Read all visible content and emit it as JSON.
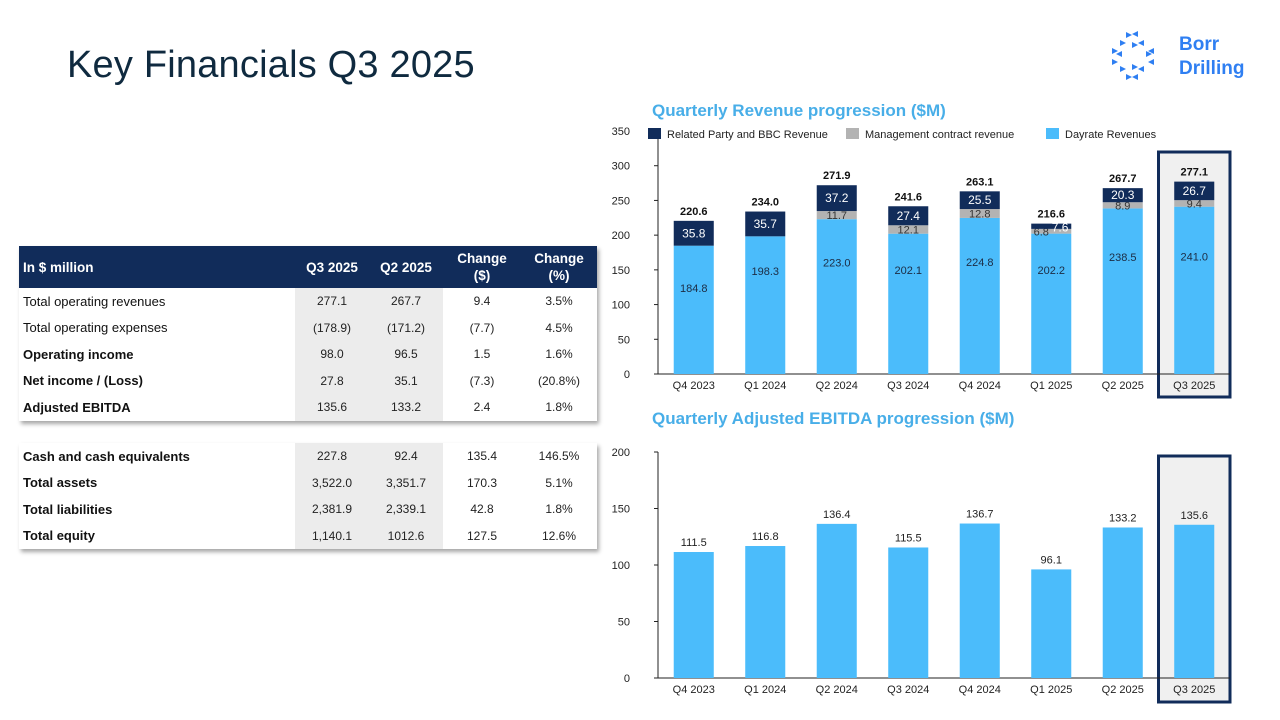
{
  "page": {
    "title": "Key Financials Q3 2025",
    "logo": {
      "line1": "Borr",
      "line2": "Drilling",
      "icon": "borr-drilling-logo-icon",
      "color": "#2f7ff2"
    }
  },
  "table_income": {
    "headers": [
      "In $ million",
      "Q3 2025",
      "Q2 2025",
      "Change ($)",
      "Change (%)"
    ],
    "header_lines": [
      [
        "In $ million"
      ],
      [
        "Q3 2025"
      ],
      [
        "Q2 2025"
      ],
      [
        "Change",
        "($)"
      ],
      [
        "Change",
        "(%)"
      ]
    ],
    "rows": [
      {
        "label": "Total operating revenues",
        "bold": false,
        "values": [
          "277.1",
          "267.7",
          "9.4",
          "3.5%"
        ]
      },
      {
        "label": "Total operating expenses",
        "bold": false,
        "values": [
          "(178.9)",
          "(171.2)",
          "(7.7)",
          "4.5%"
        ]
      },
      {
        "label": "Operating income",
        "bold": true,
        "values": [
          "98.0",
          "96.5",
          "1.5",
          "1.6%"
        ]
      },
      {
        "label": "Net income / (Loss)",
        "bold": true,
        "values": [
          "27.8",
          "35.1",
          "(7.3)",
          "(20.8%)"
        ]
      },
      {
        "label": "Adjusted EBITDA",
        "bold": true,
        "values": [
          "135.6",
          "133.2",
          "2.4",
          "1.8%"
        ]
      }
    ]
  },
  "table_balance": {
    "rows": [
      {
        "label": "Cash and cash equivalents",
        "bold": true,
        "values": [
          "227.8",
          "92.4",
          "135.4",
          "146.5%"
        ]
      },
      {
        "label": "Total assets",
        "bold": true,
        "values": [
          "3,522.0",
          "3,351.7",
          "170.3",
          "5.1%"
        ]
      },
      {
        "label": "Total liabilities",
        "bold": true,
        "values": [
          "2,381.9",
          "2,339.1",
          "42.8",
          "1.8%"
        ]
      },
      {
        "label": "Total equity",
        "bold": true,
        "values": [
          "1,140.1",
          "1012.6",
          "127.5",
          "12.6%"
        ]
      }
    ]
  },
  "chart_data": [
    {
      "type": "bar",
      "stacked": true,
      "title": "Quarterly Revenue progression ($M)",
      "categories": [
        "Q4 2023",
        "Q1 2024",
        "Q2 2024",
        "Q3 2024",
        "Q4 2024",
        "Q1 2025",
        "Q2 2025",
        "Q3 2025"
      ],
      "series": [
        {
          "name": "Dayrate Revenues",
          "color": "#4bbcfb",
          "values": [
            184.8,
            198.3,
            223.0,
            202.1,
            224.8,
            202.2,
            238.5,
            241.0
          ]
        },
        {
          "name": "Management contract revenue",
          "color": "#b3b3b3",
          "values": [
            0,
            0,
            11.7,
            12.1,
            12.8,
            6.8,
            8.9,
            9.4
          ]
        },
        {
          "name": "Related Party and BBC Revenue",
          "color": "#112c5a",
          "values": [
            35.8,
            35.7,
            37.2,
            27.4,
            25.5,
            7.6,
            20.3,
            26.7
          ]
        }
      ],
      "legend_order": [
        "Related Party and BBC Revenue",
        "Management contract revenue",
        "Dayrate Revenues"
      ],
      "legend_position": "top",
      "totals": [
        220.6,
        234.0,
        271.9,
        241.6,
        263.1,
        216.6,
        267.7,
        277.1
      ],
      "ylim": [
        0,
        350
      ],
      "yticks": [
        0,
        50,
        100,
        150,
        200,
        250,
        300,
        350
      ],
      "highlight_category": "Q3 2025",
      "grid": false
    },
    {
      "type": "bar",
      "title": "Quarterly Adjusted EBITDA progression ($M)",
      "categories": [
        "Q4 2023",
        "Q1 2024",
        "Q2 2024",
        "Q3 2024",
        "Q4 2024",
        "Q1 2025",
        "Q2 2025",
        "Q3 2025"
      ],
      "values": [
        111.5,
        116.8,
        136.4,
        115.5,
        136.7,
        96.1,
        133.2,
        135.6
      ],
      "color": "#4bbcfb",
      "ylim": [
        0,
        200
      ],
      "yticks": [
        0,
        50,
        100,
        150,
        200
      ],
      "highlight_category": "Q3 2025",
      "grid": false
    }
  ]
}
